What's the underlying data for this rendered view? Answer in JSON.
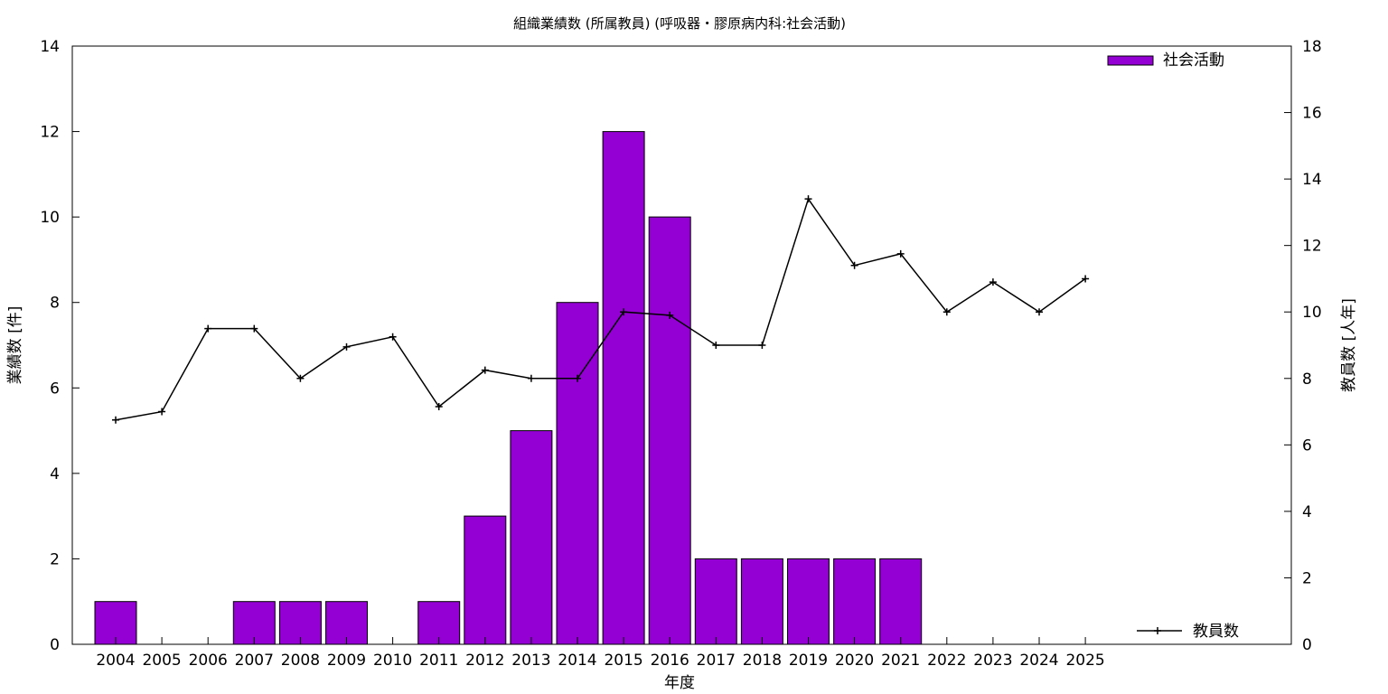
{
  "chart_data": {
    "type": "bar",
    "title": "組織業績数 (所属教員) (呼吸器・膠原病内科:社会活動)",
    "xlabel": "年度",
    "ylabel": "業績数 [件]",
    "y2label": "教員数 [人年]",
    "ylim": [
      0,
      14
    ],
    "y2lim": [
      0,
      18
    ],
    "yticks": [
      "0",
      "2",
      "4",
      "6",
      "8",
      "10",
      "12",
      "14"
    ],
    "y2ticks": [
      "0",
      "2",
      "4",
      "6",
      "8",
      "10",
      "12",
      "14",
      "16",
      "18"
    ],
    "categories": [
      "2004",
      "2005",
      "2006",
      "2007",
      "2008",
      "2009",
      "2010",
      "2011",
      "2012",
      "2013",
      "2014",
      "2015",
      "2016",
      "2017",
      "2018",
      "2019",
      "2020",
      "2021",
      "2022",
      "2023",
      "2024",
      "2025"
    ],
    "series": [
      {
        "name": "社会活動",
        "type": "bar",
        "axis": "left",
        "color": "#9400d3",
        "values": [
          1,
          0,
          0,
          1,
          1,
          1,
          0,
          1,
          3,
          5,
          8,
          12,
          10,
          2,
          2,
          2,
          2,
          2,
          0,
          0,
          0,
          0
        ]
      },
      {
        "name": "教員数",
        "type": "line",
        "axis": "right",
        "color": "#000000",
        "values": [
          6.75,
          7.0,
          9.5,
          9.5,
          8.0,
          8.95,
          9.25,
          7.15,
          8.25,
          8.0,
          8.0,
          10.0,
          9.9,
          9.0,
          9.0,
          13.4,
          11.4,
          11.75,
          10.0,
          10.9,
          10.0,
          11.0
        ]
      }
    ],
    "legend": "top-right",
    "grid": false
  }
}
